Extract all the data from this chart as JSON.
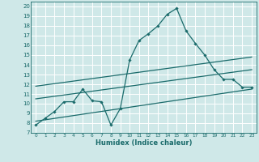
{
  "xlabel": "Humidex (Indice chaleur)",
  "background_color": "#cfe8e8",
  "grid_color": "#ffffff",
  "line_color": "#1a6b6b",
  "xlim": [
    -0.5,
    23.5
  ],
  "ylim": [
    7,
    20.5
  ],
  "yticks": [
    7,
    8,
    9,
    10,
    11,
    12,
    13,
    14,
    15,
    16,
    17,
    18,
    19,
    20
  ],
  "xticks": [
    0,
    1,
    2,
    3,
    4,
    5,
    6,
    7,
    8,
    9,
    10,
    11,
    12,
    13,
    14,
    15,
    16,
    17,
    18,
    19,
    20,
    21,
    22,
    23
  ],
  "series_main": {
    "x": [
      0,
      1,
      2,
      3,
      4,
      5,
      6,
      7,
      8,
      9,
      10,
      11,
      12,
      13,
      14,
      15,
      16,
      17,
      18,
      19,
      20,
      21,
      22,
      23
    ],
    "y": [
      7.8,
      8.5,
      9.2,
      10.2,
      10.2,
      11.5,
      10.3,
      10.2,
      7.8,
      9.5,
      14.5,
      16.5,
      17.2,
      18.0,
      19.2,
      19.8,
      17.5,
      16.2,
      15.0,
      13.5,
      12.5,
      12.5,
      11.7,
      11.7
    ]
  },
  "trend_lines": [
    {
      "x0": 0,
      "y0": 11.8,
      "x1": 23,
      "y1": 14.8
    },
    {
      "x0": 0,
      "y0": 10.5,
      "x1": 23,
      "y1": 13.5
    },
    {
      "x0": 0,
      "y0": 8.2,
      "x1": 23,
      "y1": 11.5
    }
  ]
}
